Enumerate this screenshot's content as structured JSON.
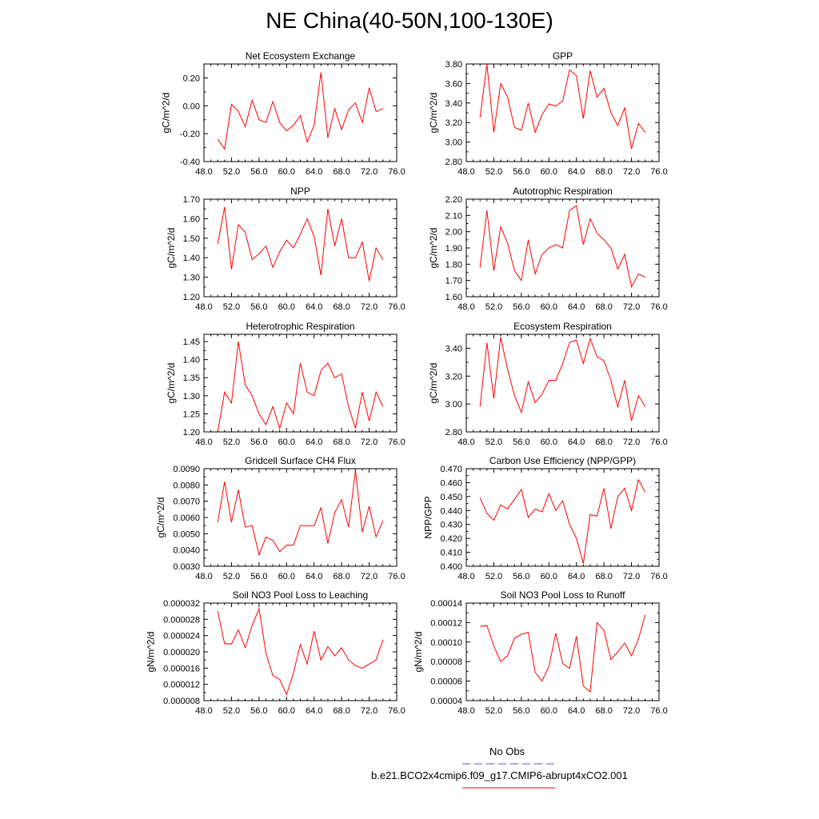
{
  "title": "NE China(40-50N,100-130E)",
  "colors": {
    "model_line": "#ff0000",
    "obs_line": "#5555cc"
  },
  "legend": {
    "obs_label": "No Obs",
    "model_label": "b.e21.BCO2x4cmip6.f09_g17.CMIP6-abrupt4xCO2.001"
  },
  "chart_data": [
    {
      "type": "line",
      "title": "Net Ecosystem Exchange",
      "ylabel": "gC/m^2/d",
      "xlim": [
        48,
        76
      ],
      "ylim": [
        -0.4,
        0.3
      ],
      "xticks": [
        48,
        52,
        56,
        60,
        64,
        68,
        72,
        76
      ],
      "xtick_labels": [
        "48.0",
        "52.0",
        "56.0",
        "60.0",
        "64.0",
        "68.0",
        "72.0",
        "76.0"
      ],
      "yticks": [
        -0.4,
        -0.2,
        0.0,
        0.2
      ],
      "ytick_labels": [
        "-0.40",
        "-0.20",
        "0.00",
        "0.20"
      ],
      "x": [
        50,
        51,
        52,
        53,
        54,
        55,
        56,
        57,
        58,
        59,
        60,
        61,
        62,
        63,
        64,
        65,
        66,
        67,
        68,
        69,
        70,
        71,
        72,
        73,
        74
      ],
      "values": [
        -0.24,
        -0.31,
        0.01,
        -0.04,
        -0.15,
        0.04,
        -0.1,
        -0.12,
        0.03,
        -0.12,
        -0.18,
        -0.14,
        -0.07,
        -0.26,
        -0.14,
        0.24,
        -0.23,
        -0.02,
        -0.17,
        -0.03,
        0.02,
        -0.12,
        0.13,
        -0.04,
        -0.02
      ]
    },
    {
      "type": "line",
      "title": "GPP",
      "ylabel": "gC/m^2/d",
      "xlim": [
        48,
        76
      ],
      "ylim": [
        2.8,
        3.8
      ],
      "xticks": [
        48,
        52,
        56,
        60,
        64,
        68,
        72,
        76
      ],
      "xtick_labels": [
        "48.0",
        "52.0",
        "56.0",
        "60.0",
        "64.0",
        "68.0",
        "72.0",
        "76.0"
      ],
      "yticks": [
        2.8,
        3.0,
        3.2,
        3.4,
        3.6,
        3.8
      ],
      "ytick_labels": [
        "2.80",
        "3.00",
        "3.20",
        "3.40",
        "3.60",
        "3.80"
      ],
      "x": [
        50,
        51,
        52,
        53,
        54,
        55,
        56,
        57,
        58,
        59,
        60,
        61,
        62,
        63,
        64,
        65,
        66,
        67,
        68,
        69,
        70,
        71,
        72,
        73,
        74
      ],
      "values": [
        3.25,
        3.8,
        3.1,
        3.6,
        3.46,
        3.15,
        3.12,
        3.4,
        3.1,
        3.28,
        3.39,
        3.37,
        3.42,
        3.74,
        3.68,
        3.24,
        3.73,
        3.46,
        3.55,
        3.3,
        3.17,
        3.35,
        2.93,
        3.19,
        3.1
      ]
    },
    {
      "type": "line",
      "title": "NPP",
      "ylabel": "gC/m^2/d",
      "xlim": [
        48,
        76
      ],
      "ylim": [
        1.2,
        1.7
      ],
      "xticks": [
        48,
        52,
        56,
        60,
        64,
        68,
        72,
        76
      ],
      "xtick_labels": [
        "48.0",
        "52.0",
        "56.0",
        "60.0",
        "64.0",
        "68.0",
        "72.0",
        "76.0"
      ],
      "yticks": [
        1.2,
        1.3,
        1.4,
        1.5,
        1.6,
        1.7
      ],
      "ytick_labels": [
        "1.20",
        "1.30",
        "1.40",
        "1.50",
        "1.60",
        "1.70"
      ],
      "x": [
        50,
        51,
        52,
        53,
        54,
        55,
        56,
        57,
        58,
        59,
        60,
        61,
        62,
        63,
        64,
        65,
        66,
        67,
        68,
        69,
        70,
        71,
        72,
        73,
        74
      ],
      "values": [
        1.47,
        1.66,
        1.34,
        1.57,
        1.53,
        1.39,
        1.42,
        1.46,
        1.35,
        1.43,
        1.49,
        1.45,
        1.52,
        1.6,
        1.51,
        1.31,
        1.65,
        1.46,
        1.6,
        1.4,
        1.4,
        1.48,
        1.28,
        1.45,
        1.39
      ]
    },
    {
      "type": "line",
      "title": "Autotrophic Respiration",
      "ylabel": "gC/m^2/d",
      "xlim": [
        48,
        76
      ],
      "ylim": [
        1.6,
        2.2
      ],
      "xticks": [
        48,
        52,
        56,
        60,
        64,
        68,
        72,
        76
      ],
      "xtick_labels": [
        "48.0",
        "52.0",
        "56.0",
        "60.0",
        "64.0",
        "68.0",
        "72.0",
        "76.0"
      ],
      "yticks": [
        1.6,
        1.7,
        1.8,
        1.9,
        2.0,
        2.1,
        2.2
      ],
      "ytick_labels": [
        "1.60",
        "1.70",
        "1.80",
        "1.90",
        "2.00",
        "2.10",
        "2.20"
      ],
      "x": [
        50,
        51,
        52,
        53,
        54,
        55,
        56,
        57,
        58,
        59,
        60,
        61,
        62,
        63,
        64,
        65,
        66,
        67,
        68,
        69,
        70,
        71,
        72,
        73,
        74
      ],
      "values": [
        1.78,
        2.13,
        1.76,
        2.03,
        1.93,
        1.76,
        1.7,
        1.95,
        1.74,
        1.86,
        1.9,
        1.92,
        1.9,
        2.13,
        2.16,
        1.92,
        2.08,
        1.99,
        1.95,
        1.9,
        1.77,
        1.86,
        1.66,
        1.74,
        1.72
      ]
    },
    {
      "type": "line",
      "title": "Heterotrophic Respiration",
      "ylabel": "gC/m^2/d",
      "xlim": [
        48,
        76
      ],
      "ylim": [
        1.2,
        1.47
      ],
      "xticks": [
        48,
        52,
        56,
        60,
        64,
        68,
        72,
        76
      ],
      "xtick_labels": [
        "48.0",
        "52.0",
        "56.0",
        "60.0",
        "64.0",
        "68.0",
        "72.0",
        "76.0"
      ],
      "yticks": [
        1.2,
        1.25,
        1.3,
        1.35,
        1.4,
        1.45
      ],
      "ytick_labels": [
        "1.20",
        "1.25",
        "1.30",
        "1.35",
        "1.40",
        "1.45"
      ],
      "x": [
        50,
        51,
        52,
        53,
        54,
        55,
        56,
        57,
        58,
        59,
        60,
        61,
        62,
        63,
        64,
        65,
        66,
        67,
        68,
        69,
        70,
        71,
        72,
        73,
        74
      ],
      "values": [
        1.2,
        1.31,
        1.28,
        1.45,
        1.33,
        1.3,
        1.25,
        1.22,
        1.27,
        1.21,
        1.28,
        1.25,
        1.39,
        1.31,
        1.3,
        1.37,
        1.39,
        1.35,
        1.36,
        1.27,
        1.21,
        1.31,
        1.23,
        1.31,
        1.27
      ]
    },
    {
      "type": "line",
      "title": "Ecosystem Respiration",
      "ylabel": "gC/m^2/d",
      "xlim": [
        48,
        76
      ],
      "ylim": [
        2.8,
        3.5
      ],
      "xticks": [
        48,
        52,
        56,
        60,
        64,
        68,
        72,
        76
      ],
      "xtick_labels": [
        "48.0",
        "52.0",
        "56.0",
        "60.0",
        "64.0",
        "68.0",
        "72.0",
        "76.0"
      ],
      "yticks": [
        2.8,
        3.0,
        3.2,
        3.4
      ],
      "ytick_labels": [
        "2.80",
        "3.00",
        "3.20",
        "3.40"
      ],
      "x": [
        50,
        51,
        52,
        53,
        54,
        55,
        56,
        57,
        58,
        59,
        60,
        61,
        62,
        63,
        64,
        65,
        66,
        67,
        68,
        69,
        70,
        71,
        72,
        73,
        74
      ],
      "values": [
        2.98,
        3.44,
        3.04,
        3.48,
        3.25,
        3.06,
        2.94,
        3.16,
        3.01,
        3.07,
        3.17,
        3.17,
        3.29,
        3.44,
        3.46,
        3.29,
        3.47,
        3.34,
        3.31,
        3.17,
        2.98,
        3.17,
        2.88,
        3.06,
        2.98
      ]
    },
    {
      "type": "line",
      "title": "Gridcell Surface CH4 Flux",
      "ylabel": "gC/m^2/d",
      "xlim": [
        48,
        76
      ],
      "ylim": [
        0.003,
        0.009
      ],
      "xticks": [
        48,
        52,
        56,
        60,
        64,
        68,
        72,
        76
      ],
      "xtick_labels": [
        "48.0",
        "52.0",
        "56.0",
        "60.0",
        "64.0",
        "68.0",
        "72.0",
        "76.0"
      ],
      "yticks": [
        0.003,
        0.004,
        0.005,
        0.006,
        0.007,
        0.008,
        0.009
      ],
      "ytick_labels": [
        "0.0030",
        "0.0040",
        "0.0050",
        "0.0060",
        "0.0070",
        "0.0080",
        "0.0090"
      ],
      "x": [
        50,
        51,
        52,
        53,
        54,
        55,
        56,
        57,
        58,
        59,
        60,
        61,
        62,
        63,
        64,
        65,
        66,
        67,
        68,
        69,
        70,
        71,
        72,
        73,
        74
      ],
      "values": [
        0.0057,
        0.0082,
        0.0057,
        0.0077,
        0.0054,
        0.0055,
        0.0037,
        0.0048,
        0.0046,
        0.0039,
        0.0043,
        0.0043,
        0.0055,
        0.0055,
        0.0055,
        0.0066,
        0.0044,
        0.0063,
        0.0071,
        0.0054,
        0.0089,
        0.0051,
        0.0067,
        0.0048,
        0.0058
      ]
    },
    {
      "type": "line",
      "title": "Carbon Use Efficiency (NPP/GPP)",
      "ylabel": "NPP/GPP",
      "xlim": [
        48,
        76
      ],
      "ylim": [
        0.4,
        0.47
      ],
      "xticks": [
        48,
        52,
        56,
        60,
        64,
        68,
        72,
        76
      ],
      "xtick_labels": [
        "48.0",
        "52.0",
        "56.0",
        "60.0",
        "64.0",
        "68.0",
        "72.0",
        "76.0"
      ],
      "yticks": [
        0.4,
        0.41,
        0.42,
        0.43,
        0.44,
        0.45,
        0.46,
        0.47
      ],
      "ytick_labels": [
        "0.400",
        "0.410",
        "0.420",
        "0.430",
        "0.440",
        "0.450",
        "0.460",
        "0.470"
      ],
      "x": [
        50,
        51,
        52,
        53,
        54,
        55,
        56,
        57,
        58,
        59,
        60,
        61,
        62,
        63,
        64,
        65,
        66,
        67,
        68,
        69,
        70,
        71,
        72,
        73,
        74
      ],
      "values": [
        0.449,
        0.438,
        0.433,
        0.444,
        0.441,
        0.448,
        0.455,
        0.435,
        0.441,
        0.439,
        0.452,
        0.44,
        0.447,
        0.43,
        0.42,
        0.402,
        0.437,
        0.436,
        0.456,
        0.427,
        0.45,
        0.456,
        0.44,
        0.462,
        0.453
      ]
    },
    {
      "type": "line",
      "title": "Soil NO3 Pool Loss to Leaching",
      "ylabel": "gN/m^2/d",
      "xlim": [
        48,
        76
      ],
      "ylim": [
        8e-06,
        3.2e-05
      ],
      "xticks": [
        48,
        52,
        56,
        60,
        64,
        68,
        72,
        76
      ],
      "xtick_labels": [
        "48.0",
        "52.0",
        "56.0",
        "60.0",
        "64.0",
        "68.0",
        "72.0",
        "76.0"
      ],
      "yticks": [
        8e-06,
        1.2e-05,
        1.6e-05,
        2e-05,
        2.4e-05,
        2.8e-05,
        3.2e-05
      ],
      "ytick_labels": [
        "0.000008",
        "0.000012",
        "0.000016",
        "0.000020",
        "0.000024",
        "0.000028",
        "0.000032"
      ],
      "x": [
        50,
        51,
        52,
        53,
        54,
        55,
        56,
        57,
        58,
        59,
        60,
        61,
        62,
        63,
        64,
        65,
        66,
        67,
        68,
        69,
        70,
        71,
        72,
        73,
        74
      ],
      "values": [
        3e-05,
        2.2e-05,
        2.19e-05,
        2.54e-05,
        2.1e-05,
        2.65e-05,
        3.06e-05,
        1.97e-05,
        1.42e-05,
        1.32e-05,
        9.5e-06,
        1.48e-05,
        2.18e-05,
        1.7e-05,
        2.51e-05,
        1.8e-05,
        2.13e-05,
        1.9e-05,
        2.1e-05,
        1.8e-05,
        1.66e-05,
        1.6e-05,
        1.7e-05,
        1.8e-05,
        2.3e-05
      ]
    },
    {
      "type": "line",
      "title": "Soil NO3 Pool Loss to Runoff",
      "ylabel": "gN/m^2/d",
      "xlim": [
        48,
        76
      ],
      "ylim": [
        4e-05,
        0.00014
      ],
      "xticks": [
        48,
        52,
        56,
        60,
        64,
        68,
        72,
        76
      ],
      "xtick_labels": [
        "48.0",
        "52.0",
        "56.0",
        "60.0",
        "64.0",
        "68.0",
        "72.0",
        "76.0"
      ],
      "yticks": [
        4e-05,
        6e-05,
        8e-05,
        0.0001,
        0.00012,
        0.00014
      ],
      "ytick_labels": [
        "0.00004",
        "0.00006",
        "0.00008",
        "0.00010",
        "0.00012",
        "0.00014"
      ],
      "x": [
        50,
        51,
        52,
        53,
        54,
        55,
        56,
        57,
        58,
        59,
        60,
        61,
        62,
        63,
        64,
        65,
        66,
        67,
        68,
        69,
        70,
        71,
        72,
        73,
        74
      ],
      "values": [
        0.000116,
        0.000117,
        9.6e-05,
        8e-05,
        8.6e-05,
        0.000104,
        0.000108,
        0.00011,
        6.9e-05,
        6e-05,
        7.5e-05,
        0.000109,
        7.8e-05,
        7.3e-05,
        0.000106,
        5.5e-05,
        4.9e-05,
        0.00012,
        0.000112,
        8.2e-05,
        9e-05,
        9.9e-05,
        8.6e-05,
        0.000103,
        0.000128
      ]
    }
  ]
}
